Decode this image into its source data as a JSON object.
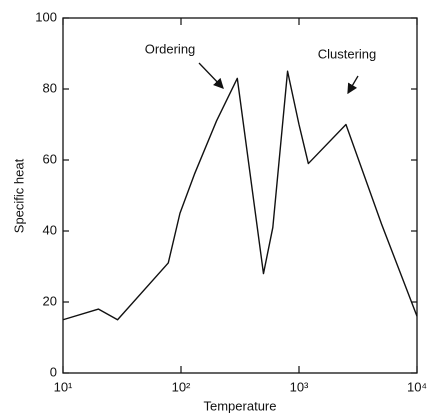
{
  "chart_data": {
    "type": "line",
    "x_label": "Temperature",
    "y_label": "Specific heat",
    "x_scale": "log",
    "x": [
      10,
      20,
      29,
      78,
      98,
      130,
      200,
      300,
      500,
      600,
      800,
      1000,
      1200,
      2500,
      5000,
      10000
    ],
    "series": [
      {
        "color": "#111111",
        "values": [
          15,
          18,
          15,
          31,
          45,
          56,
          71,
          83,
          28,
          41,
          85,
          70,
          59,
          70,
          42,
          16
        ]
      }
    ],
    "xlim": [
      10,
      10000
    ],
    "xticks": [
      {
        "value": 10,
        "label": "10¹"
      },
      {
        "value": 100,
        "label": "10²"
      },
      {
        "value": 1000,
        "label": "10³"
      },
      {
        "value": 10000,
        "label": "10⁴"
      }
    ],
    "ylim": [
      0,
      100
    ],
    "yticks": [
      0,
      20,
      40,
      60,
      80,
      100
    ],
    "annotations": [
      {
        "text": "Ordering"
      },
      {
        "text": "Clustering"
      }
    ]
  }
}
